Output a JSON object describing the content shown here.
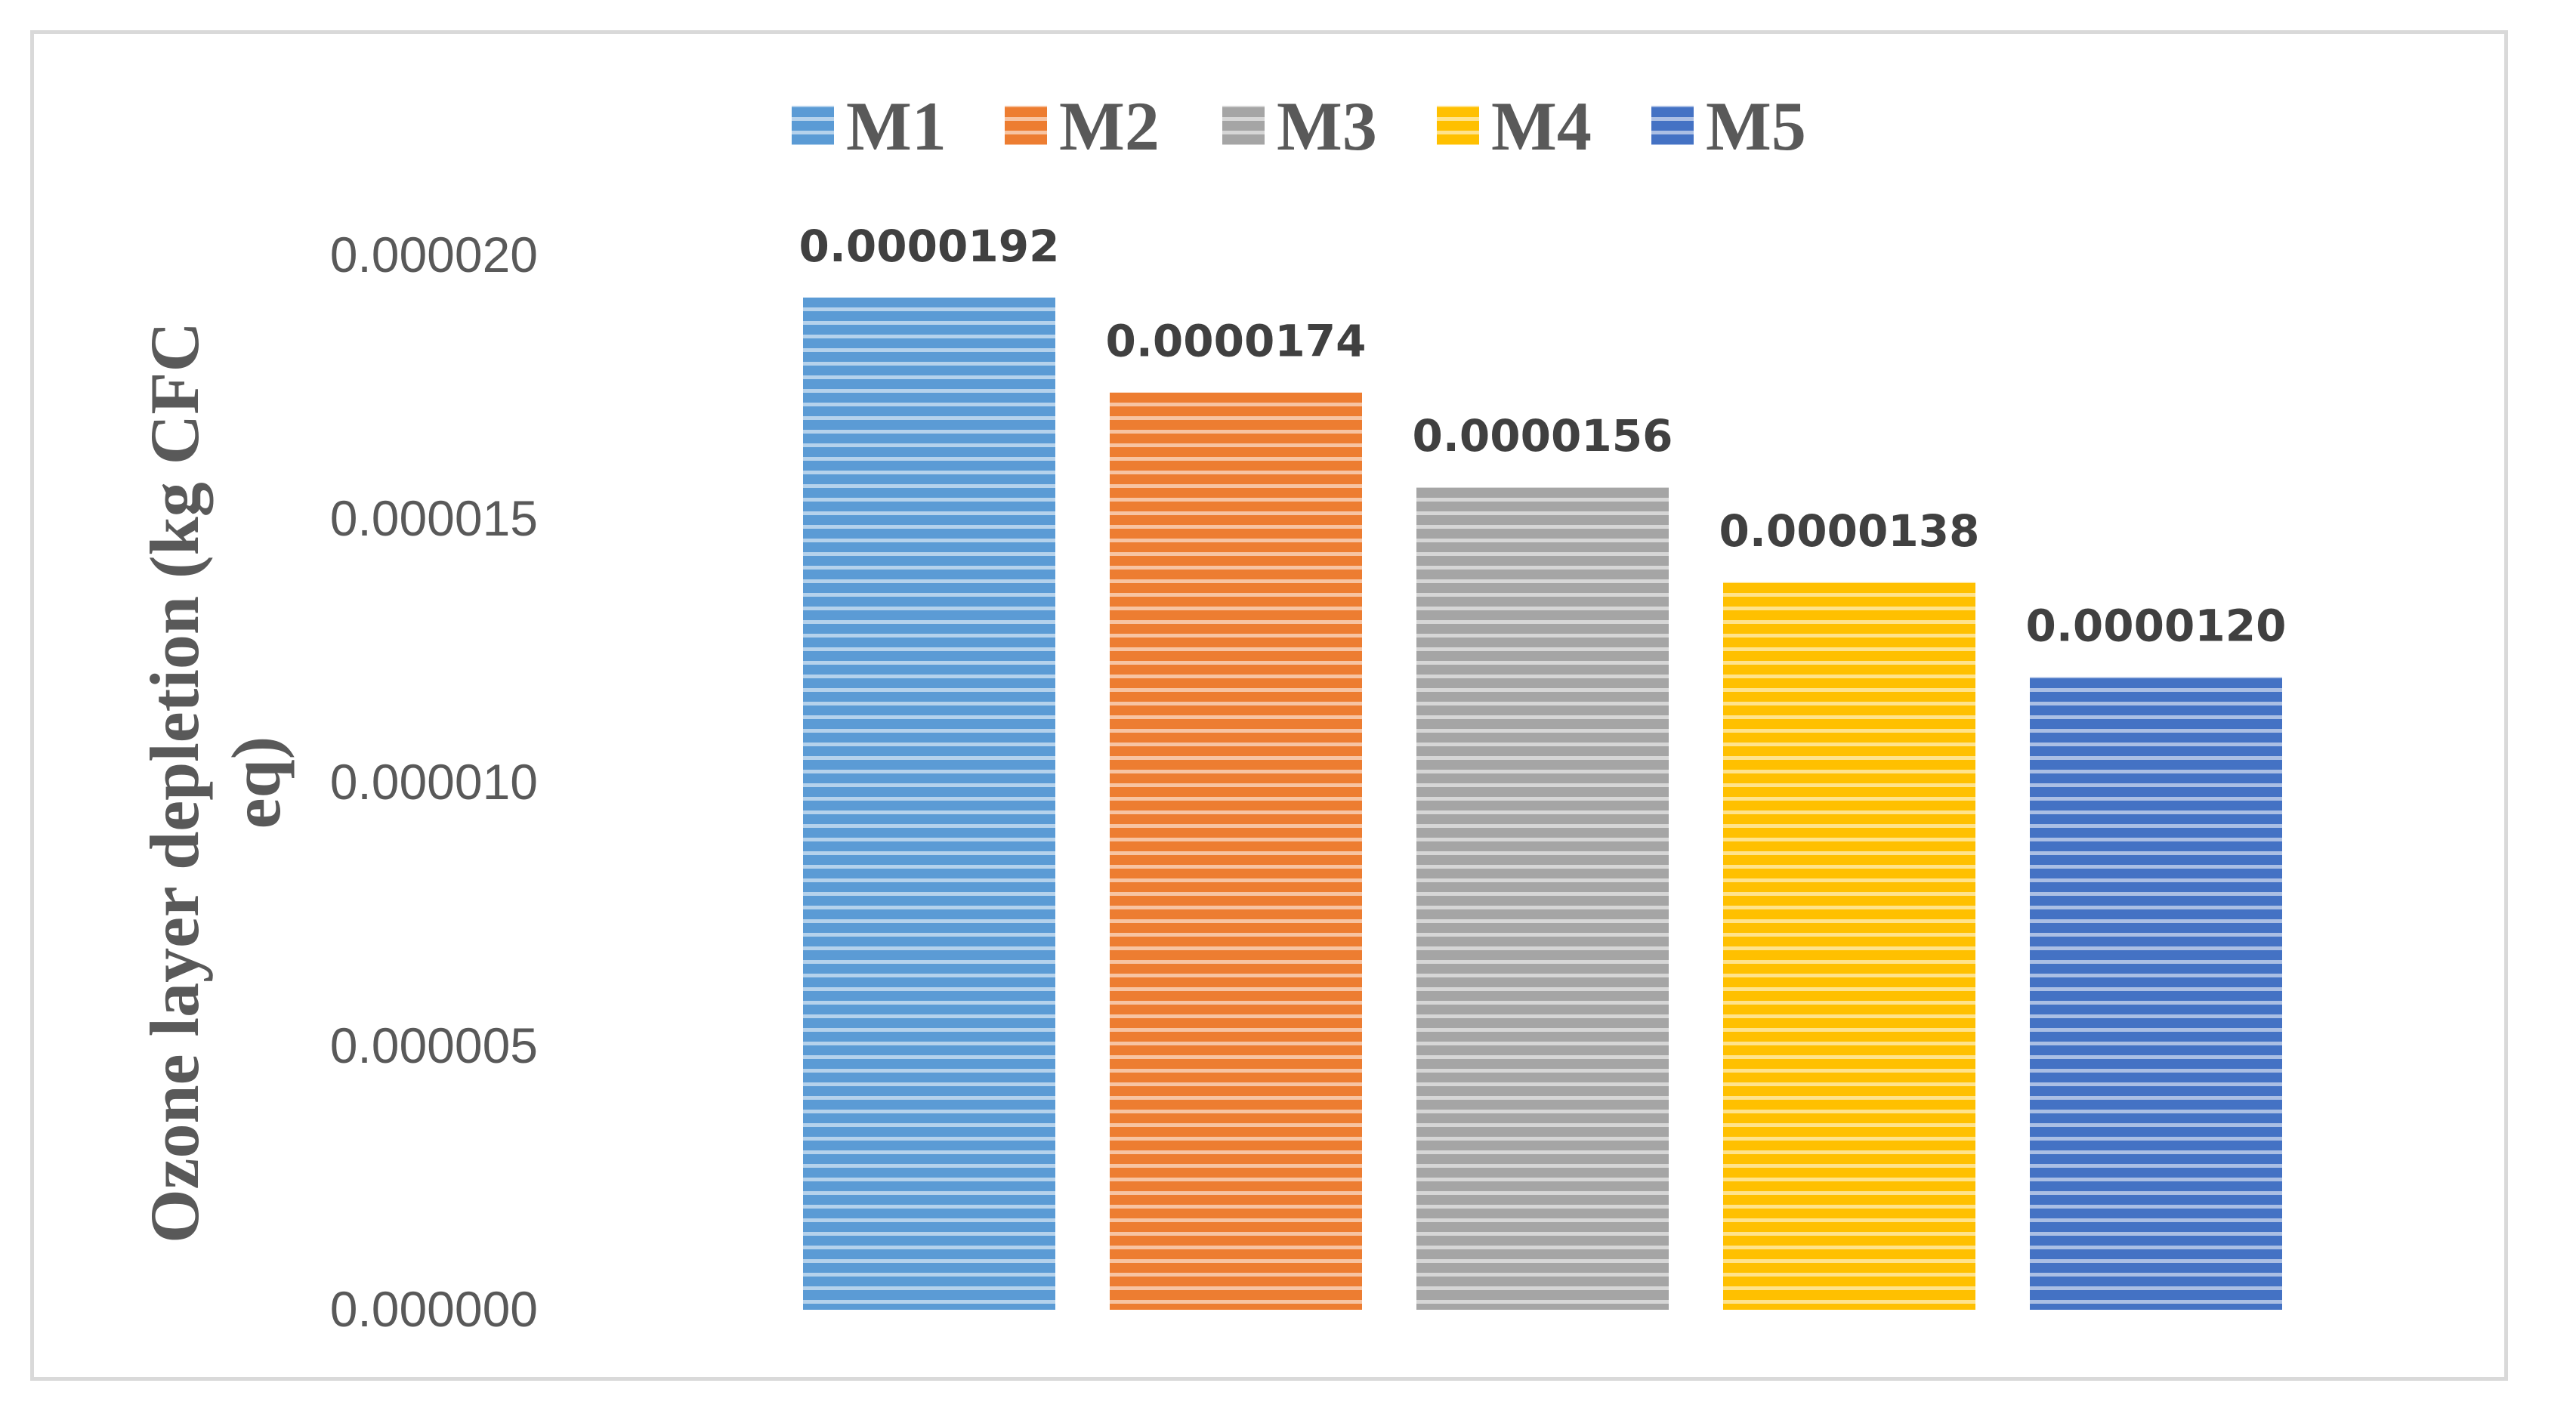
{
  "chart_data": {
    "type": "bar",
    "categories": [
      "M1",
      "M2",
      "M3",
      "M4",
      "M5"
    ],
    "values": [
      1.92e-05,
      1.74e-05,
      1.56e-05,
      1.38e-05,
      1.2e-05
    ],
    "data_labels": [
      "0.0000192",
      "0.0000174",
      "0.0000156",
      "0.0000138",
      "0.0000120"
    ],
    "colors": [
      "#5b9bd5",
      "#ed7d31",
      "#a5a5a5",
      "#ffc000",
      "#4472c4"
    ],
    "title": "",
    "xlabel": "",
    "ylabel_lines": [
      "Ozone layer depletion (kg CFC",
      "eq)"
    ],
    "ylim": [
      0,
      2e-05
    ],
    "yticks": [
      0,
      5e-06,
      1e-05,
      1.5e-05,
      2e-05
    ],
    "ytick_labels": [
      "0.000000",
      "0.000005",
      "0.000010",
      "0.000015",
      "0.000020"
    ],
    "legend": {
      "entries": [
        "M1",
        "M2",
        "M3",
        "M4",
        "M5"
      ],
      "placement": "top"
    },
    "grid": false,
    "bar_fill": "horizontal-stripes"
  }
}
